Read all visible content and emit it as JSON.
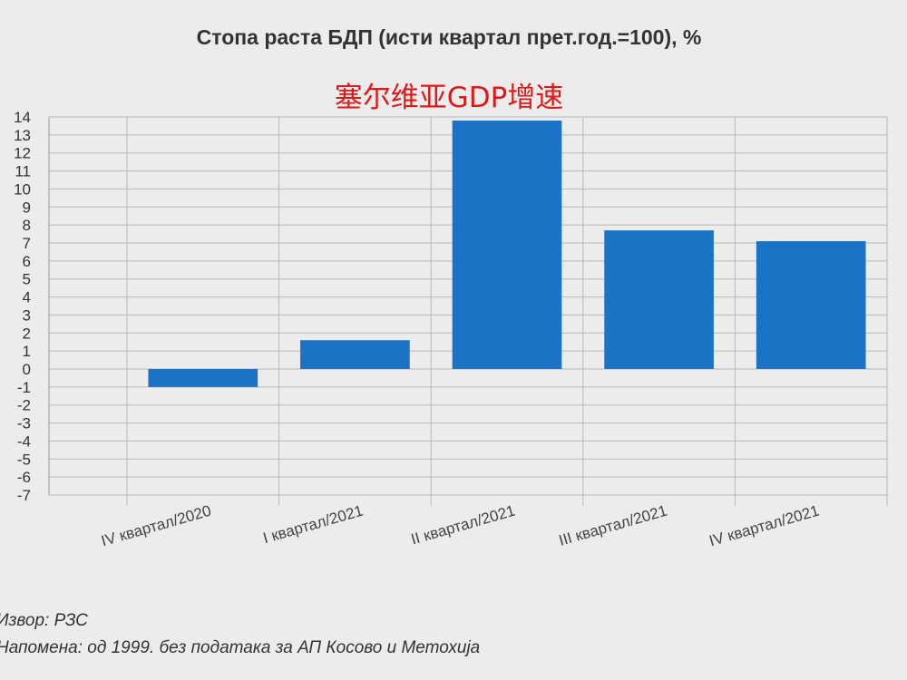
{
  "header": {
    "title": "Стопа раста БДП (исти квартал прет.год.=100), %",
    "subtitle": "塞尔维亚GDP增速"
  },
  "footer": {
    "source": "Извор: РЗС",
    "note": "Напомена: од 1999. без података за АП Косово и Метохија"
  },
  "colors": {
    "bar": "#1a73c5",
    "grid": "#b8b8b8",
    "axis": "#999999"
  },
  "chart_data": {
    "type": "bar",
    "title": "Стопа раста БДП (исти квартал прет.год.=100), %",
    "xlabel": "",
    "ylabel": "",
    "categories": [
      "IV квартал/2020",
      "I квартал/2021",
      "II квартал/2021",
      "III квартал/2021",
      "IV квартал/2021"
    ],
    "values": [
      -1.0,
      1.6,
      13.8,
      7.7,
      7.1
    ],
    "ylim": [
      -7,
      14
    ],
    "yticks": [
      14,
      13,
      12,
      11,
      10,
      9,
      8,
      7,
      6,
      5,
      4,
      3,
      2,
      1,
      0,
      -1,
      -2,
      -3,
      -4,
      -5,
      -6,
      -7
    ],
    "grid": true,
    "legend": "none"
  }
}
